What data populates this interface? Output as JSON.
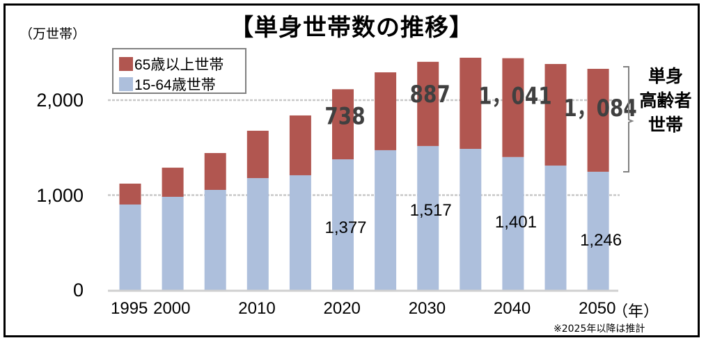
{
  "chart_data": {
    "type": "bar",
    "stacked": true,
    "title": "【単身世帯数の推移】",
    "ylabel": "（万世帯）",
    "xlabel": "（年）",
    "ylim": [
      0,
      2500
    ],
    "yticks": [
      {
        "value": 0,
        "label": "0"
      },
      {
        "value": 1000,
        "label": "1,000"
      },
      {
        "value": 2000,
        "label": "2,000"
      }
    ],
    "grid": true,
    "categories": [
      "1995",
      "2000",
      "2005",
      "2010",
      "2015",
      "2020",
      "2025",
      "2030",
      "2035",
      "2040",
      "2045",
      "2050"
    ],
    "xtick_labels": [
      {
        "index": 0,
        "label": "1995"
      },
      {
        "index": 1,
        "label": "2000"
      },
      {
        "index": 3,
        "label": "2010"
      },
      {
        "index": 5,
        "label": "2020"
      },
      {
        "index": 7,
        "label": "2030"
      },
      {
        "index": 9,
        "label": "2040"
      },
      {
        "index": 11,
        "label": "2050"
      }
    ],
    "series": [
      {
        "name": "15-64歳世帯",
        "color": "#adbfdc",
        "values": [
          901,
          982,
          1055,
          1179,
          1209,
          1377,
          1473,
          1517,
          1487,
          1401,
          1311,
          1246
        ]
      },
      {
        "name": "65歳以上世帯",
        "color": "#b15650",
        "values": [
          220,
          307,
          388,
          499,
          630,
          738,
          820,
          887,
          960,
          1041,
          1070,
          1084
        ]
      }
    ],
    "data_labels": {
      "red": [
        {
          "index": 5,
          "label": "738"
        },
        {
          "index": 7,
          "label": "887"
        },
        {
          "index": 9,
          "label": "1，041"
        },
        {
          "index": 11,
          "label": "1，084"
        }
      ],
      "blue": [
        {
          "index": 5,
          "label": "1,377"
        },
        {
          "index": 7,
          "label": "1,517"
        },
        {
          "index": 9,
          "label": "1,401"
        },
        {
          "index": 11,
          "label": "1,246"
        }
      ]
    },
    "legend": {
      "position": "top-left",
      "items": [
        {
          "label": "65歳以上世帯",
          "color": "#b15650"
        },
        {
          "label": "15-64歳世帯",
          "color": "#adbfdc"
        }
      ]
    },
    "annotation": {
      "bracket_label_lines": [
        "単身",
        "高齢者",
        "世帯"
      ]
    },
    "note": "※2025年以降は推計",
    "year_unit": "（年）"
  }
}
